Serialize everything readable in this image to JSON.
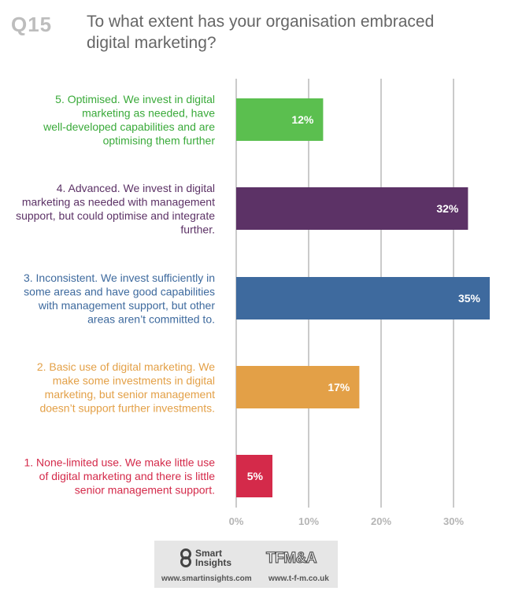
{
  "header": {
    "qnum": "Q15",
    "question": "To what extent has your organisation embraced digital marketing?"
  },
  "chart_data": {
    "type": "bar",
    "orientation": "horizontal",
    "title": "To what extent has your organisation embraced digital marketing?",
    "xlim": [
      0,
      35
    ],
    "x_ticks": [
      "0%",
      "10%",
      "20%",
      "30%"
    ],
    "grid": true,
    "categories": [
      {
        "lines": [
          "5. Optimised. We invest in digital",
          "marketing as needed, have",
          "well-developed capabilities and are",
          "optimising them further"
        ],
        "value": 12,
        "value_label": "12%",
        "color": "#5bbf4f",
        "label_color": "#3aaa3a"
      },
      {
        "lines": [
          "4. Advanced. We invest in digital",
          "marketing as needed with management",
          "support, but could optimise and integrate",
          "further."
        ],
        "value": 32,
        "value_label": "32%",
        "color": "#5c3266",
        "label_color": "#5c3266"
      },
      {
        "lines": [
          "3. Inconsistent. We invest sufficiently in",
          "some areas and have good capabilities",
          "with management support, but other",
          "areas aren’t committed to."
        ],
        "value": 35,
        "value_label": "35%",
        "color": "#3e6a9e",
        "label_color": "#3e6a9e"
      },
      {
        "lines": [
          "2. Basic use of digital marketing. We",
          "make some investments in digital",
          "marketing, but senior management",
          "doesn’t support further investments."
        ],
        "value": 17,
        "value_label": "17%",
        "color": "#e3a047",
        "label_color": "#e3a047"
      },
      {
        "lines": [
          "1. None-limited use. We make little use",
          "of digital marketing and there is little",
          "senior management support."
        ],
        "value": 5,
        "value_label": "5%",
        "color": "#d42a4a",
        "label_color": "#d42a4a"
      }
    ]
  },
  "footer": {
    "smart_insights_logo": "Smart Insights",
    "smart_insights_line1": "Smart",
    "smart_insights_line2": "Insights",
    "smart_insights_url": "www.smartinsights.com",
    "tfma_logo": "TFM&A",
    "tfma_url": "www.t-f-m.co.uk"
  }
}
